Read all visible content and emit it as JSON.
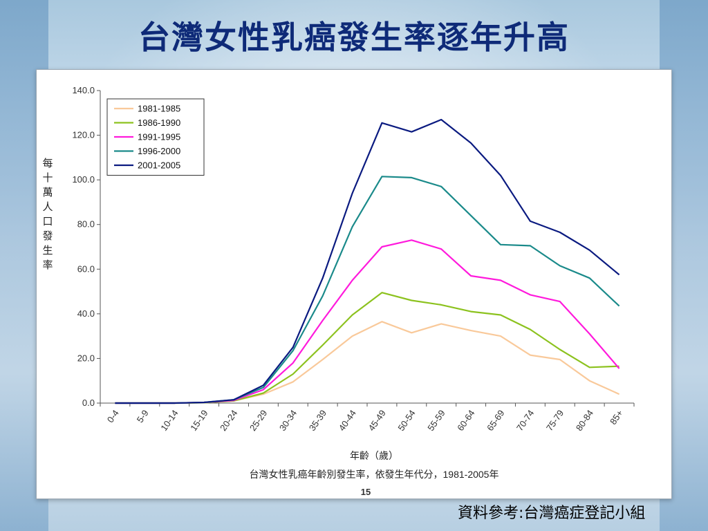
{
  "slide": {
    "title": "台灣女性乳癌發生率逐年升高",
    "source": "資料參考:台灣癌症登記小組",
    "page_number": "15"
  },
  "chart_data": {
    "type": "line",
    "title": "台灣女性乳癌年齡別發生率，依發生年代分，1981-2005年",
    "xlabel": "年齡（歲）",
    "ylabel": "每十萬人口發生率",
    "ylim": [
      0,
      140
    ],
    "yticks": [
      "0.0",
      "20.0",
      "40.0",
      "60.0",
      "80.0",
      "100.0",
      "120.0",
      "140.0"
    ],
    "categories": [
      "0-4",
      "5-9",
      "10-14",
      "15-19",
      "20-24",
      "25-29",
      "30-34",
      "35-39",
      "40-44",
      "45-49",
      "50-54",
      "55-59",
      "60-64",
      "65-69",
      "70-74",
      "75-79",
      "80-84",
      "85+"
    ],
    "legend_position": "top-left",
    "series": [
      {
        "name": "1981-1985",
        "color": "#f9c99a",
        "values": [
          0,
          0,
          0,
          0.2,
          1.0,
          4.0,
          9.5,
          19.5,
          30,
          36.5,
          31.5,
          35.5,
          32.5,
          30,
          21.5,
          19.5,
          10,
          4
        ]
      },
      {
        "name": "1986-1990",
        "color": "#8cc21e",
        "values": [
          0,
          0,
          0,
          0.2,
          1.0,
          4.5,
          13,
          26,
          39.5,
          49.5,
          46,
          44,
          41,
          39.5,
          33,
          24,
          16,
          16.5
        ]
      },
      {
        "name": "1991-1995",
        "color": "#ff1adc",
        "values": [
          0,
          0,
          0,
          0.3,
          1.2,
          6,
          18,
          37,
          55,
          70,
          73,
          69,
          57,
          55,
          48.5,
          45.5,
          31,
          15.5
        ]
      },
      {
        "name": "1996-2000",
        "color": "#1a8a8a",
        "values": [
          0,
          0,
          0,
          0.3,
          1.5,
          7,
          23.5,
          48,
          79,
          101.5,
          101,
          97,
          84,
          71,
          70.5,
          61.5,
          56,
          43.5
        ]
      },
      {
        "name": "2001-2005",
        "color": "#0a1a80",
        "values": [
          0,
          0,
          0,
          0.3,
          1.5,
          8,
          25,
          56,
          94,
          125.5,
          121.5,
          127,
          116.5,
          102,
          81.5,
          76.5,
          68.5,
          57.5
        ]
      }
    ]
  }
}
